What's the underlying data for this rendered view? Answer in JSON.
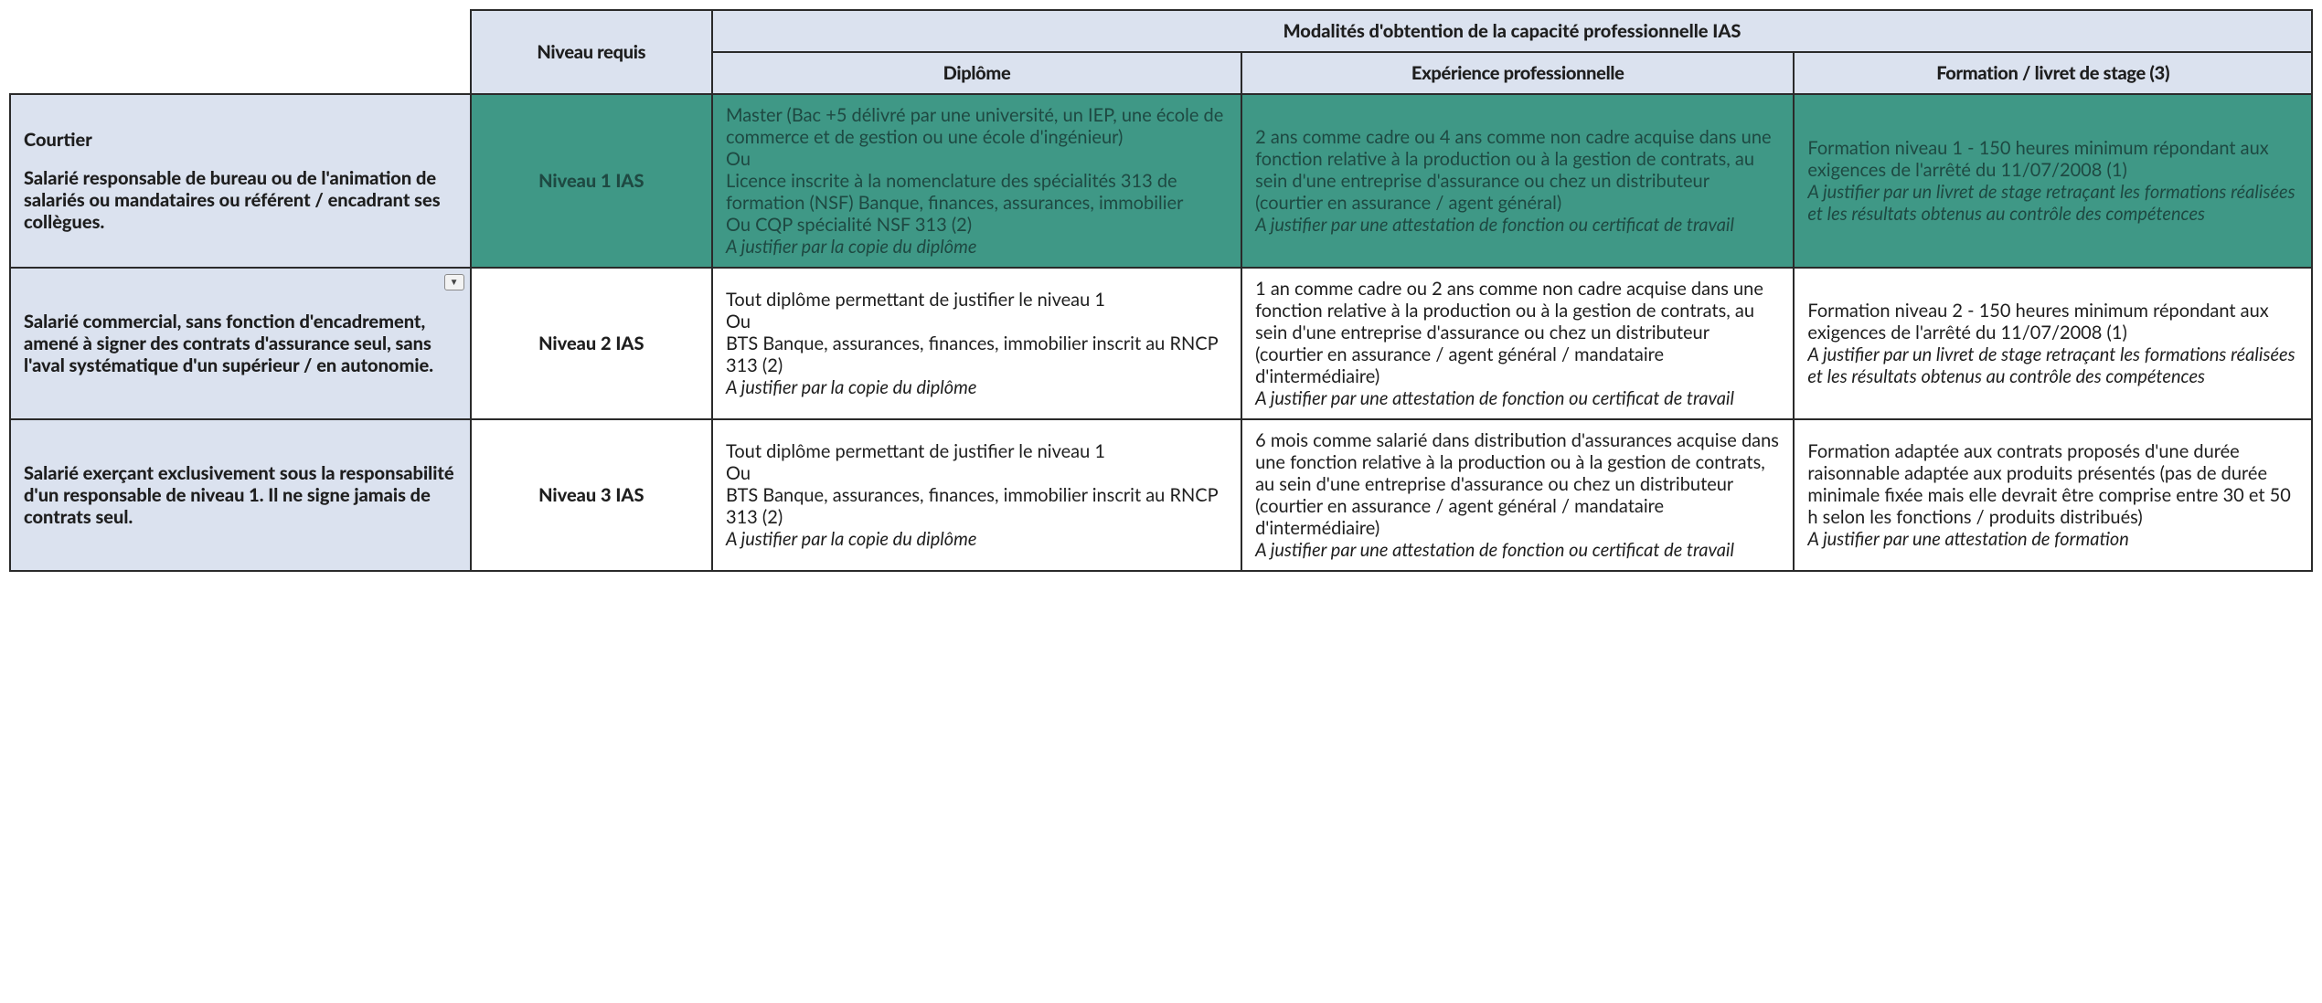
{
  "colors": {
    "border": "#2a2a2a",
    "header_bg": "#dbe2ef",
    "highlight_bg": "#3f9886",
    "highlight_text": "#1e4942"
  },
  "headers": {
    "niveau_requis": "Niveau requis",
    "modalites": "Modalités d'obtention de la capacité professionnelle IAS",
    "diplome": "Diplôme",
    "experience": "Expérience professionnelle",
    "formation": "Formation / livret de stage (3)"
  },
  "rows": [
    {
      "highlight": true,
      "desc_title": "Courtier",
      "desc_body": "Salarié responsable de bureau ou de l'animation de salariés ou mandataires ou référent / encadrant ses collègues.",
      "level": "Niveau 1 IAS",
      "diplome_body": "Master (Bac +5 délivré par une université, un IEP, une école de commerce et de gestion ou une école d'ingénieur)\nOu\nLicence inscrite à la nomenclature des spécialités 313 de formation (NSF) Banque, finances, assurances, immobilier\nOu CQP spécialité NSF 313 (2)",
      "diplome_justify": "A justifier par la copie du diplôme",
      "experience_body": "2 ans comme cadre ou 4 ans comme non cadre acquise dans une fonction relative à la production ou à la gestion de contrats, au sein d'une entreprise d'assurance ou chez un distributeur (courtier en assurance / agent général)",
      "experience_justify": "A justifier par une attestation de fonction ou certificat de travail",
      "formation_body": "Formation niveau 1 - 150 heures minimum répondant aux exigences de l'arrêté du 11/07/2008 (1)",
      "formation_justify": "A justifier par un livret de stage retraçant les formations réalisées et les résultats obtenus au contrôle des compétences"
    },
    {
      "highlight": false,
      "show_dropdown": true,
      "desc_title": "",
      "desc_body": "Salarié commercial, sans fonction d'encadrement, amené à signer des contrats d'assurance seul, sans l'aval systématique d'un supérieur / en autonomie.",
      "level": "Niveau 2 IAS",
      "diplome_body": "Tout diplôme permettant de justifier le niveau 1\nOu\nBTS Banque, assurances, finances, immobilier inscrit au RNCP 313 (2)",
      "diplome_justify": "A justifier par la copie du diplôme",
      "experience_body": "1 an comme cadre ou 2 ans comme non cadre acquise dans une fonction relative à la production ou à la gestion de contrats, au sein d'une entreprise d'assurance ou chez un distributeur (courtier en assurance / agent général / mandataire d'intermédiaire)",
      "experience_justify": "A justifier par une attestation de fonction ou certificat de travail",
      "formation_body": "Formation niveau 2 - 150 heures minimum répondant aux exigences de l'arrêté du 11/07/2008 (1)",
      "formation_justify": "A justifier par un livret de stage retraçant les formations réalisées et les résultats obtenus au contrôle des compétences"
    },
    {
      "highlight": false,
      "desc_title": "",
      "desc_body": "Salarié exerçant exclusivement sous la responsabilité d'un responsable de niveau 1. Il ne signe jamais de contrats seul.",
      "level": "Niveau 3 IAS",
      "diplome_body": "Tout diplôme permettant de justifier le niveau 1\nOu\nBTS Banque, assurances, finances, immobilier inscrit au RNCP 313 (2)",
      "diplome_justify": "A justifier par la copie du diplôme",
      "experience_body": "6 mois comme salarié dans distribution d'assurances acquise dans une fonction relative à la production ou à la gestion de contrats, au sein d'une entreprise d'assurance ou chez un distributeur (courtier en assurance / agent général / mandataire d'intermédiaire)",
      "experience_justify": "A justifier par une attestation de fonction ou certificat de travail",
      "formation_body": "Formation adaptée aux contrats proposés d'une durée raisonnable adaptée aux produits présentés (pas de durée minimale fixée mais elle devrait être comprise entre 30 et 50 h selon les fonctions / produits distribués)",
      "formation_justify": "A justifier par une attestation de formation"
    }
  ]
}
